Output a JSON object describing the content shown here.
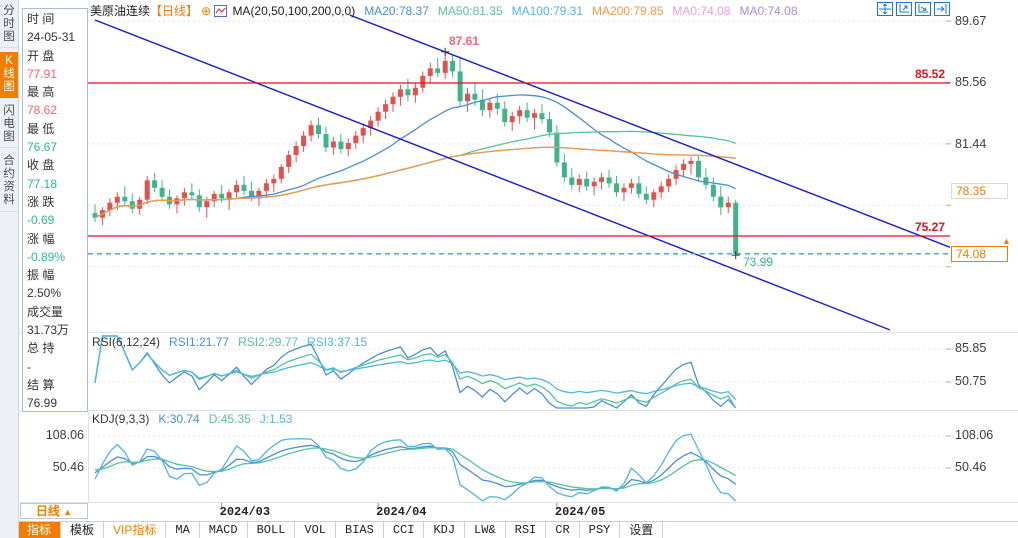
{
  "sidebar": {
    "tabs": [
      {
        "label": "分时图",
        "active": false
      },
      {
        "label": "K线图",
        "active": true
      },
      {
        "label": "闪电图",
        "active": false
      },
      {
        "label": "合约资料",
        "active": false
      }
    ]
  },
  "header": {
    "title": "美原油连续",
    "period_tag": "【日线】",
    "ma_formula": "MA(20,50,100,200,0,0)",
    "ma_values": [
      {
        "label": "MA20:78.37",
        "color": "#4a8fd3"
      },
      {
        "label": "MA50:81.35",
        "color": "#55c596"
      },
      {
        "label": "MA100:79.31",
        "color": "#4fb4e8"
      },
      {
        "label": "MA200:79.85",
        "color": "#f59a49"
      },
      {
        "label": "MA0:74.08",
        "color": "#ef9ae4"
      },
      {
        "label": "MA0:74.08",
        "color": "#a78be0"
      }
    ],
    "icons": [
      "pan-icon",
      "fit-vertical-icon",
      "fit-horizontal-icon",
      "jump-latest-icon"
    ]
  },
  "icons": {
    "circle_plus": "⊕",
    "arrow_up": "▲",
    "period_arrow": "▲"
  },
  "info_panel": {
    "rows": [
      {
        "l": "时 间",
        "v": "24-05-31",
        "c": "#333333"
      },
      {
        "l": "开 盘",
        "v": "77.91",
        "c": "#f8616e"
      },
      {
        "l": "最 高",
        "v": "78.62",
        "c": "#f8616e"
      },
      {
        "l": "最 低",
        "v": "76.67",
        "c": "#2bba92"
      },
      {
        "l": "收 盘",
        "v": "77.18",
        "c": "#2bba92"
      },
      {
        "l": "涨 跌",
        "v": "-0.69",
        "c": "#2bba92"
      },
      {
        "l": "涨 幅",
        "v": "-0.89%",
        "c": "#2bba92"
      },
      {
        "l": "振 幅",
        "v": "2.50%",
        "c": "#333333"
      },
      {
        "l": "成交量",
        "v": "31.73万",
        "c": "#333333"
      },
      {
        "l": "总 持",
        "v": "-",
        "c": "#333333"
      },
      {
        "l": "结 算",
        "v": "76.99",
        "c": "#333333"
      }
    ]
  },
  "main_chart": {
    "y_labels": [
      "89.67",
      "85.56",
      "81.44"
    ],
    "resistance_label": "85.52",
    "support_label": "75.27",
    "prev_settle_badge": "78.35",
    "last_price_badge": "74.08",
    "high_label": "87.61",
    "low_label": "73.99"
  },
  "rsi_panel": {
    "formula": "RSI(6,12,24)",
    "values": [
      {
        "label": "RSI1:21.77",
        "color": "#4a8fd3"
      },
      {
        "label": "RSI2:29.77",
        "color": "#55c596"
      },
      {
        "label": "RSI3:37.15",
        "color": "#4fb4e8"
      }
    ],
    "y_labels": [
      "85.85",
      "50.75"
    ]
  },
  "kdj_panel": {
    "formula": "KDJ(9,3,3)",
    "values": [
      {
        "label": "K:30.74",
        "color": "#4a8fd3"
      },
      {
        "label": "D:45.35",
        "color": "#55c596"
      },
      {
        "label": "J:1.53",
        "color": "#4fb4e8"
      }
    ],
    "y_labels_left": [
      "108.06",
      "50.46"
    ],
    "y_labels_right": [
      "108.06",
      "50.46"
    ]
  },
  "xaxis": {
    "period_label": "日线",
    "ticks": [
      {
        "index": 17,
        "label": "2024/03"
      },
      {
        "index": 38,
        "label": "2024/04"
      },
      {
        "index": 62,
        "label": "2024/05"
      }
    ]
  },
  "bottom_toolbar": {
    "items": [
      {
        "label": "指标",
        "style": "active"
      },
      {
        "label": "模板",
        "style": ""
      },
      {
        "label": "VIP指标",
        "style": "vip"
      },
      {
        "label": "MA",
        "style": ""
      },
      {
        "label": "MACD",
        "style": ""
      },
      {
        "label": "BOLL",
        "style": ""
      },
      {
        "label": "VOL",
        "style": ""
      },
      {
        "label": "BIAS",
        "style": ""
      },
      {
        "label": "CCI",
        "style": ""
      },
      {
        "label": "KDJ",
        "style": ""
      },
      {
        "label": "LW&",
        "style": ""
      },
      {
        "label": "RSI",
        "style": ""
      },
      {
        "label": "CR",
        "style": ""
      },
      {
        "label": "PSY",
        "style": ""
      },
      {
        "label": "设置",
        "style": ""
      }
    ]
  },
  "chart_data": {
    "type": "candlestick",
    "symbol": "美原油连续",
    "interval": "日线",
    "grid_prices": [
      89.67,
      85.56,
      81.44,
      77.33,
      73.21
    ],
    "levels": {
      "resistance": 85.52,
      "support": 75.27,
      "prev_settle": 78.35,
      "last_price": 74.08,
      "high": 87.61,
      "low": 73.99
    },
    "high_index": 47,
    "low_index": 86,
    "ma_periods": [
      20,
      50,
      100,
      200
    ],
    "ma_colors": [
      "#4a8fd3",
      "#55c596",
      "#4fb4e8",
      "#f59a49"
    ],
    "candle_up_color": "#e2514d",
    "candle_down_color": "#3eb488",
    "trend_color": "#1518d8",
    "level_color": "#e8101c",
    "last_price_line_color": "#3a9af0",
    "trendlines": [
      {
        "i1": 34.2,
        "p1": 90.07,
        "i2": 119.9,
        "p2": 73.53
      },
      {
        "i1": 0,
        "p1": 89.74,
        "i2": 106.7,
        "p2": 68.98
      }
    ],
    "rsi_periods": [
      6,
      12,
      24
    ],
    "kdj_params": [
      9,
      3,
      3
    ],
    "rsi_axis": [
      85.85,
      50.75
    ],
    "kdj_axis": [
      108.06,
      50.46
    ],
    "indicator_colors": [
      "#4a8fd3",
      "#55c596",
      "#4fb4e8"
    ],
    "ohlc": [
      [
        76.8,
        77.4,
        76.2,
        76.5
      ],
      [
        76.5,
        77.2,
        76.0,
        77.0
      ],
      [
        77.0,
        77.8,
        76.6,
        77.5
      ],
      [
        77.5,
        78.2,
        77.0,
        77.9
      ],
      [
        77.9,
        78.6,
        77.3,
        77.6
      ],
      [
        77.6,
        78.1,
        76.8,
        77.1
      ],
      [
        77.1,
        77.9,
        76.7,
        77.7
      ],
      [
        77.7,
        79.3,
        77.4,
        79.0
      ],
      [
        79.0,
        79.5,
        78.2,
        78.5
      ],
      [
        78.5,
        79.0,
        77.6,
        77.9
      ],
      [
        77.9,
        78.4,
        77.1,
        77.4
      ],
      [
        77.4,
        78.0,
        76.8,
        77.8
      ],
      [
        77.8,
        78.5,
        77.3,
        78.2
      ],
      [
        78.2,
        78.8,
        77.7,
        78.0
      ],
      [
        78.0,
        78.4,
        76.9,
        77.2
      ],
      [
        77.2,
        77.9,
        76.5,
        77.6
      ],
      [
        77.6,
        78.3,
        77.2,
        78.1
      ],
      [
        78.1,
        78.7,
        77.5,
        77.8
      ],
      [
        77.8,
        78.4,
        77.0,
        78.2
      ],
      [
        78.2,
        79.0,
        77.8,
        78.7
      ],
      [
        78.7,
        79.3,
        78.0,
        78.3
      ],
      [
        78.3,
        78.9,
        77.6,
        77.9
      ],
      [
        77.9,
        78.5,
        77.3,
        78.3
      ],
      [
        78.3,
        79.1,
        77.9,
        78.8
      ],
      [
        78.8,
        79.4,
        78.2,
        79.1
      ],
      [
        79.1,
        80.1,
        78.8,
        79.9
      ],
      [
        79.9,
        81.0,
        79.5,
        80.7
      ],
      [
        80.7,
        81.6,
        80.2,
        81.3
      ],
      [
        81.3,
        82.3,
        80.9,
        82.0
      ],
      [
        82.0,
        83.0,
        81.6,
        82.7
      ],
      [
        82.7,
        83.2,
        81.8,
        82.1
      ],
      [
        82.1,
        82.6,
        80.9,
        81.2
      ],
      [
        81.2,
        81.9,
        80.7,
        81.6
      ],
      [
        81.6,
        82.1,
        80.8,
        81.1
      ],
      [
        81.1,
        81.8,
        80.6,
        81.5
      ],
      [
        81.5,
        82.3,
        81.1,
        82.0
      ],
      [
        82.0,
        82.8,
        81.5,
        82.5
      ],
      [
        82.5,
        83.3,
        82.0,
        83.0
      ],
      [
        83.0,
        83.9,
        82.6,
        83.6
      ],
      [
        83.6,
        84.4,
        83.1,
        84.1
      ],
      [
        84.1,
        84.9,
        83.6,
        84.6
      ],
      [
        84.6,
        85.4,
        84.0,
        85.1
      ],
      [
        85.1,
        85.8,
        84.3,
        84.7
      ],
      [
        84.7,
        85.5,
        84.2,
        85.2
      ],
      [
        85.2,
        86.3,
        84.9,
        86.0
      ],
      [
        86.0,
        86.9,
        85.5,
        86.5
      ],
      [
        86.5,
        87.2,
        85.9,
        86.2
      ],
      [
        86.2,
        87.61,
        85.8,
        87.0
      ],
      [
        87.0,
        87.4,
        85.9,
        86.3
      ],
      [
        86.3,
        87.3,
        83.9,
        84.3
      ],
      [
        84.3,
        85.2,
        83.6,
        84.8
      ],
      [
        84.8,
        85.5,
        84.0,
        84.4
      ],
      [
        84.4,
        85.1,
        83.3,
        83.7
      ],
      [
        83.7,
        84.5,
        83.2,
        84.2
      ],
      [
        84.2,
        84.8,
        83.4,
        83.8
      ],
      [
        83.8,
        84.3,
        82.6,
        82.9
      ],
      [
        82.9,
        83.6,
        82.3,
        83.3
      ],
      [
        83.3,
        84.0,
        82.8,
        83.7
      ],
      [
        83.7,
        84.2,
        82.9,
        83.2
      ],
      [
        83.2,
        83.8,
        82.4,
        83.5
      ],
      [
        83.5,
        84.1,
        82.8,
        83.1
      ],
      [
        83.1,
        83.6,
        81.9,
        82.2
      ],
      [
        82.2,
        82.7,
        79.9,
        80.2
      ],
      [
        80.2,
        80.8,
        78.9,
        79.2
      ],
      [
        79.2,
        79.8,
        78.4,
        78.7
      ],
      [
        78.7,
        79.4,
        78.2,
        79.1
      ],
      [
        79.1,
        79.6,
        78.3,
        78.6
      ],
      [
        78.6,
        79.2,
        78.0,
        78.9
      ],
      [
        78.9,
        79.5,
        78.4,
        79.2
      ],
      [
        79.2,
        79.7,
        78.5,
        78.8
      ],
      [
        78.8,
        79.3,
        77.9,
        78.2
      ],
      [
        78.2,
        78.8,
        77.6,
        78.5
      ],
      [
        78.5,
        79.1,
        78.1,
        78.8
      ],
      [
        78.8,
        79.3,
        77.8,
        78.1
      ],
      [
        78.1,
        78.6,
        77.4,
        77.7
      ],
      [
        77.7,
        78.4,
        77.2,
        78.2
      ],
      [
        78.2,
        78.9,
        77.8,
        78.6
      ],
      [
        78.6,
        79.4,
        78.2,
        79.1
      ],
      [
        79.1,
        80.0,
        78.7,
        79.7
      ],
      [
        79.7,
        80.4,
        79.2,
        80.1
      ],
      [
        80.1,
        80.6,
        79.4,
        80.3
      ],
      [
        80.3,
        80.7,
        78.9,
        79.2
      ],
      [
        79.2,
        79.8,
        78.4,
        78.7
      ],
      [
        78.7,
        79.2,
        77.6,
        77.9
      ],
      [
        77.91,
        78.62,
        76.67,
        77.18
      ],
      [
        77.2,
        77.9,
        76.8,
        77.5
      ],
      [
        77.5,
        77.7,
        73.99,
        74.08
      ]
    ]
  }
}
